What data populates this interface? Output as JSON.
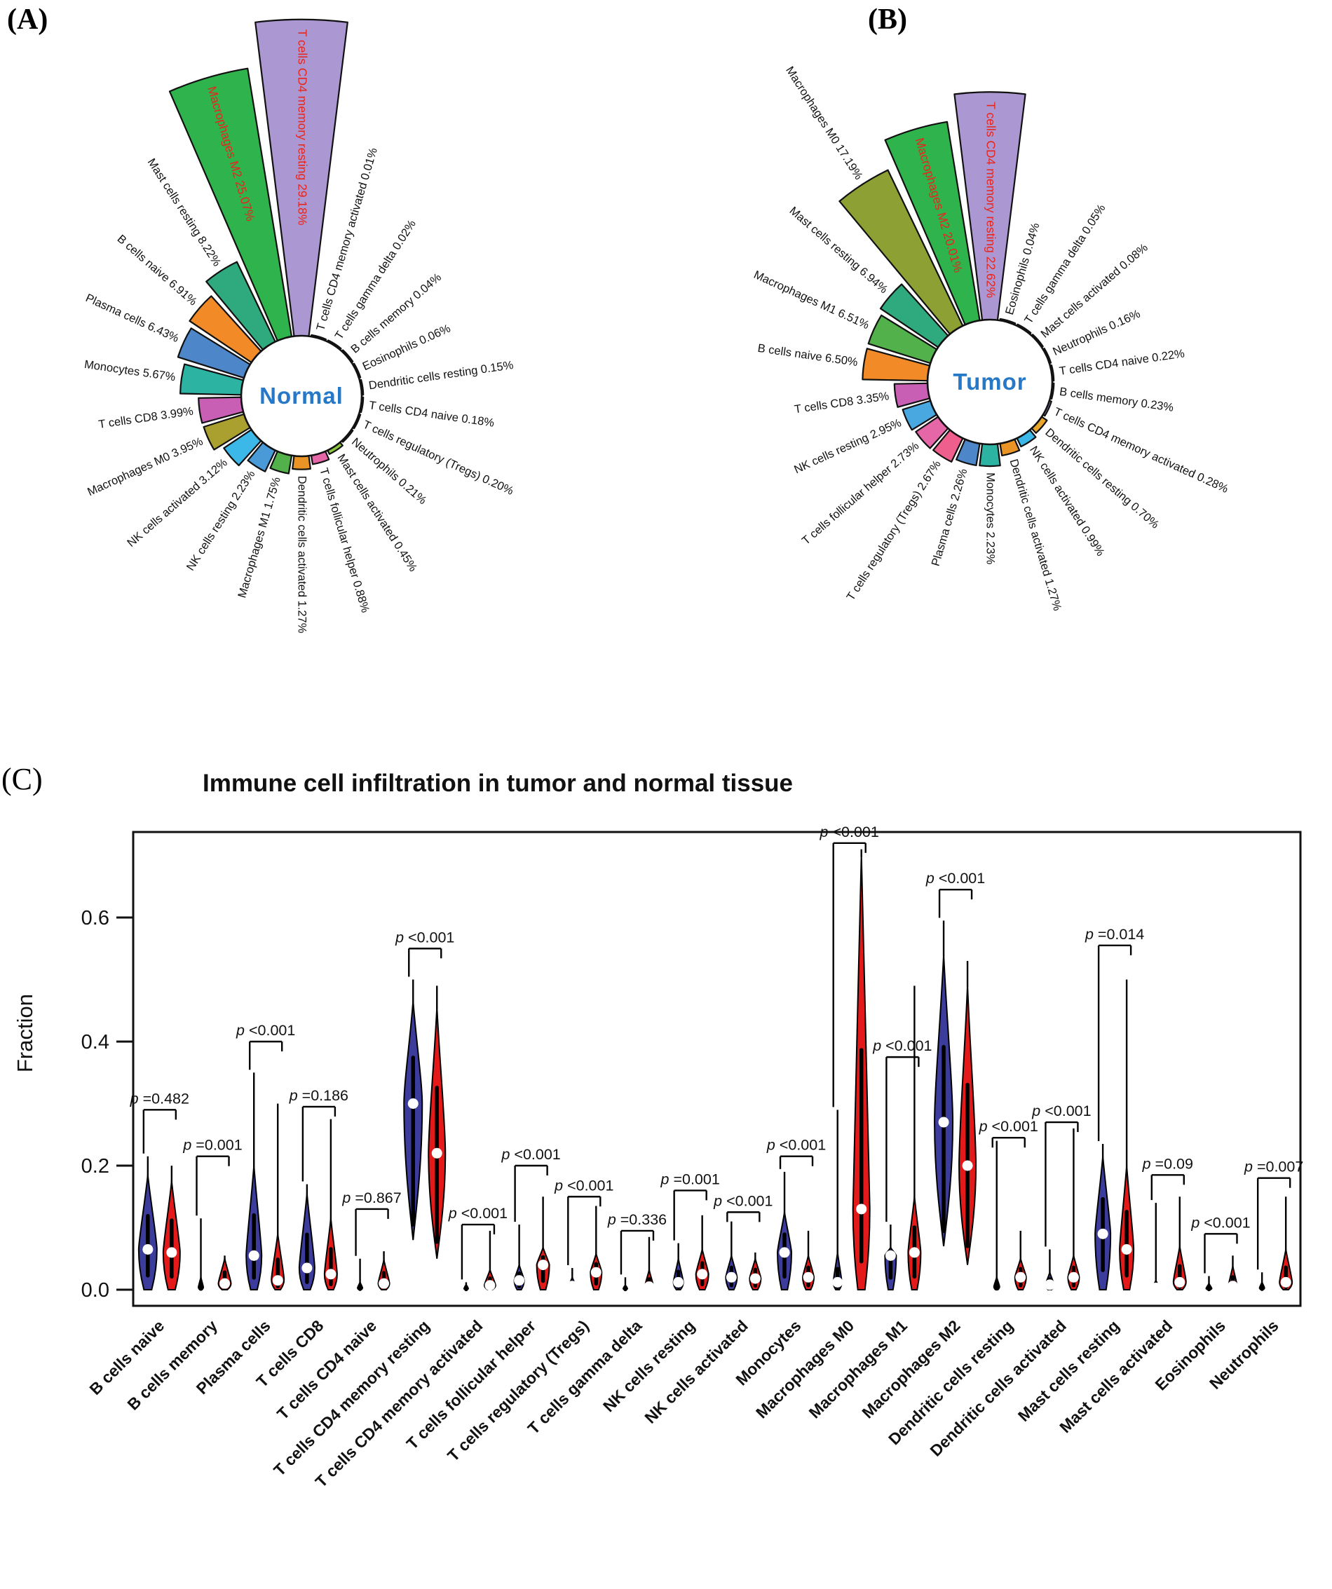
{
  "chart_data": [
    {
      "id": "A",
      "type": "rose",
      "panel_label": "(A)",
      "center_label": "Normal",
      "unit": "%",
      "highlight_color": "#e8251d",
      "series": [
        {
          "label": "T cells CD4 memory resting",
          "value": 29.18,
          "pct": "29.18%",
          "color": "#ab97d1",
          "highlight": true
        },
        {
          "label": "Macrophages M2",
          "value": 25.07,
          "pct": "25.07%",
          "color": "#2fb34c",
          "highlight": true
        },
        {
          "label": "Mast cells resting",
          "value": 8.22,
          "pct": "8.22%",
          "color": "#2fa97e"
        },
        {
          "label": "B cells naive",
          "value": 6.91,
          "pct": "6.91%",
          "color": "#f18a27"
        },
        {
          "label": "Plasma cells",
          "value": 6.43,
          "pct": "6.43%",
          "color": "#4e86ca"
        },
        {
          "label": "Monocytes",
          "value": 5.67,
          "pct": "5.67%",
          "color": "#2db3a2"
        },
        {
          "label": "T cells CD8",
          "value": 3.99,
          "pct": "3.99%",
          "color": "#c95fb5"
        },
        {
          "label": "Macrophages M0",
          "value": 3.95,
          "pct": "3.95%",
          "color": "#aaa02f"
        },
        {
          "label": "NK cells activated",
          "value": 3.12,
          "pct": "3.12%",
          "color": "#3cb8e8"
        },
        {
          "label": "NK cells resting",
          "value": 2.23,
          "pct": "2.23%",
          "color": "#4a9ad8"
        },
        {
          "label": "Macrophages M1",
          "value": 1.75,
          "pct": "1.75%",
          "color": "#52b14b"
        },
        {
          "label": "Dendritic cells activated",
          "value": 1.27,
          "pct": "1.27%",
          "color": "#eb9426"
        },
        {
          "label": "T cells follicular helper",
          "value": 0.88,
          "pct": "0.88%",
          "color": "#e667a8"
        },
        {
          "label": "Mast cells activated",
          "value": 0.45,
          "pct": "0.45%",
          "color": "#8cc63e"
        },
        {
          "label": "Neutrophils",
          "value": 0.21,
          "pct": "0.21%",
          "color": "#e4519e"
        },
        {
          "label": "T cells regulatory (Tregs)",
          "value": 0.2,
          "pct": "0.20%",
          "color": "#b8d96a"
        },
        {
          "label": "T cells CD4 naive",
          "value": 0.18,
          "pct": "0.18%",
          "color": "#e89bc3"
        },
        {
          "label": "Dendritic cells resting",
          "value": 0.15,
          "pct": "0.15%",
          "color": "#f2a73b"
        },
        {
          "label": "Eosinophils",
          "value": 0.06,
          "pct": "0.06%",
          "color": "#7f66b3"
        },
        {
          "label": "B cells memory",
          "value": 0.04,
          "pct": "0.04%",
          "color": "#c8a23f"
        },
        {
          "label": "T cells gamma delta",
          "value": 0.02,
          "pct": "0.02%",
          "color": "#69c5c9"
        },
        {
          "label": "T cells CD4 memory activated",
          "value": 0.01,
          "pct": "0.01%",
          "color": "#d46a6a"
        }
      ]
    },
    {
      "id": "B",
      "type": "rose",
      "panel_label": "(B)",
      "center_label": "Tumor",
      "unit": "%",
      "highlight_color": "#e8251d",
      "series": [
        {
          "label": "T cells CD4 memory resting",
          "value": 22.62,
          "pct": "22.62%",
          "color": "#ab97d1",
          "highlight": true
        },
        {
          "label": "Macrophages M2",
          "value": 20.01,
          "pct": "20.01%",
          "color": "#2fb34c",
          "highlight": true
        },
        {
          "label": "Macrophages M0",
          "value": 17.19,
          "pct": "17.19%",
          "color": "#8da033"
        },
        {
          "label": "Mast cells resting",
          "value": 6.94,
          "pct": "6.94%",
          "color": "#2fa97e"
        },
        {
          "label": "Macrophages M1",
          "value": 6.51,
          "pct": "6.51%",
          "color": "#52b14b"
        },
        {
          "label": "B cells naive",
          "value": 6.5,
          "pct": "6.50%",
          "color": "#f18a27"
        },
        {
          "label": "T cells CD8",
          "value": 3.35,
          "pct": "3.35%",
          "color": "#c95fb5"
        },
        {
          "label": "NK cells resting",
          "value": 2.95,
          "pct": "2.95%",
          "color": "#4aa8e0"
        },
        {
          "label": "T cells follicular helper",
          "value": 2.73,
          "pct": "2.73%",
          "color": "#e667a8"
        },
        {
          "label": "T cells regulatory (Tregs)",
          "value": 2.67,
          "pct": "2.67%",
          "color": "#ef5f8e"
        },
        {
          "label": "Plasma cells",
          "value": 2.26,
          "pct": "2.26%",
          "color": "#4e86ca"
        },
        {
          "label": "Monocytes",
          "value": 2.23,
          "pct": "2.23%",
          "color": "#2db3a2"
        },
        {
          "label": "Dendritic cells activated",
          "value": 1.27,
          "pct": "1.27%",
          "color": "#eb9426"
        },
        {
          "label": "NK cells activated",
          "value": 0.99,
          "pct": "0.99%",
          "color": "#3cb8e8"
        },
        {
          "label": "Dendritic cells resting",
          "value": 0.7,
          "pct": "0.70%",
          "color": "#e8a62b"
        },
        {
          "label": "T cells CD4 memory activated",
          "value": 0.28,
          "pct": "0.28%",
          "color": "#9a86c9"
        },
        {
          "label": "B cells memory",
          "value": 0.23,
          "pct": "0.23%",
          "color": "#c8a23f"
        },
        {
          "label": "T cells CD4 naive",
          "value": 0.22,
          "pct": "0.22%",
          "color": "#e89bc3"
        },
        {
          "label": "Neutrophils",
          "value": 0.16,
          "pct": "0.16%",
          "color": "#e4519e"
        },
        {
          "label": "Mast cells activated",
          "value": 0.08,
          "pct": "0.08%",
          "color": "#8cc63e"
        },
        {
          "label": "T cells gamma delta",
          "value": 0.05,
          "pct": "0.05%",
          "color": "#69c5c9"
        },
        {
          "label": "Eosinophils",
          "value": 0.04,
          "pct": "0.04%",
          "color": "#7f66b3"
        }
      ]
    },
    {
      "id": "C",
      "type": "violin",
      "panel_label": "(C)",
      "title": "Immune cell infiltration in tumor and normal tissue",
      "ylabel": "Fraction",
      "ylim": [
        0,
        0.74
      ],
      "yticks": [
        0,
        0.2,
        0.4,
        0.6
      ],
      "ytick_labels": [
        "0.0",
        "0.2",
        "0.4",
        "0.6"
      ],
      "series_names": [
        "Normal",
        "Tumor"
      ],
      "normal_color": "#3c3c9c",
      "tumor_color": "#e41a1a",
      "median_dot_color": "#ffffff",
      "groups": [
        {
          "category": "B cells naive",
          "p": "p=0.482",
          "p_y": 0.29,
          "normal": {
            "max": 0.215,
            "body": 0.185,
            "median": 0.065,
            "w": 13
          },
          "tumor": {
            "max": 0.2,
            "body": 0.175,
            "median": 0.06,
            "w": 12
          }
        },
        {
          "category": "B cells memory",
          "p": "p=0.001",
          "p_y": 0.215,
          "normal": {
            "max": 0.115,
            "body": 0.02,
            "median": 0.004,
            "w": 3.5
          },
          "tumor": {
            "max": 0.055,
            "body": 0.05,
            "median": 0.01,
            "w": 9
          }
        },
        {
          "category": "Plasma cells",
          "p": "p<0.001",
          "p_y": 0.4,
          "normal": {
            "max": 0.35,
            "body": 0.2,
            "median": 0.055,
            "w": 11
          },
          "tumor": {
            "max": 0.3,
            "body": 0.09,
            "median": 0.015,
            "w": 9
          }
        },
        {
          "category": "T cells CD8",
          "p": "p=0.186",
          "p_y": 0.295,
          "normal": {
            "max": 0.17,
            "body": 0.155,
            "median": 0.035,
            "w": 11
          },
          "tumor": {
            "max": 0.275,
            "body": 0.115,
            "median": 0.025,
            "w": 9
          }
        },
        {
          "category": "T cells CD4 naive",
          "p": "p=0.867",
          "p_y": 0.13,
          "normal": {
            "max": 0.05,
            "body": 0.012,
            "median": 0.003,
            "w": 3.5
          },
          "tumor": {
            "max": 0.062,
            "body": 0.048,
            "median": 0.01,
            "w": 8
          }
        },
        {
          "category": "T cells CD4 memory resting",
          "p": "p<0.001",
          "p_y": 0.55,
          "normal": {
            "max": 0.5,
            "body": 0.465,
            "median": 0.3,
            "w": 13,
            "lo": 0.08
          },
          "tumor": {
            "max": 0.49,
            "body": 0.455,
            "median": 0.22,
            "w": 12,
            "lo": 0.05
          }
        },
        {
          "category": "T cells CD4 memory activated",
          "p": "p<0.001",
          "p_y": 0.105,
          "normal": {
            "max": 0.012,
            "body": 0.008,
            "median": 0.002,
            "w": 3
          },
          "tumor": {
            "max": 0.095,
            "body": 0.032,
            "median": 0.007,
            "w": 8
          }
        },
        {
          "category": "T cells follicular helper",
          "p": "p<0.001",
          "p_y": 0.2,
          "normal": {
            "max": 0.105,
            "body": 0.04,
            "median": 0.015,
            "w": 7
          },
          "tumor": {
            "max": 0.15,
            "body": 0.068,
            "median": 0.04,
            "w": 9
          }
        },
        {
          "category": "T cells regulatory (Tregs)",
          "p": "p<0.001",
          "p_y": 0.15,
          "normal": {
            "max": 0.035,
            "body": 0.02,
            "median": 0.006,
            "w": 5
          },
          "tumor": {
            "max": 0.135,
            "body": 0.058,
            "median": 0.028,
            "w": 8
          }
        },
        {
          "category": "T cells gamma delta",
          "p": "p=0.336",
          "p_y": 0.095,
          "normal": {
            "max": 0.02,
            "body": 0.007,
            "median": 0.002,
            "w": 3
          },
          "tumor": {
            "max": 0.085,
            "body": 0.032,
            "median": 0.005,
            "w": 6
          }
        },
        {
          "category": "NK cells resting",
          "p": "p=0.001",
          "p_y": 0.16,
          "normal": {
            "max": 0.075,
            "body": 0.05,
            "median": 0.012,
            "w": 7
          },
          "tumor": {
            "max": 0.12,
            "body": 0.065,
            "median": 0.025,
            "w": 9
          }
        },
        {
          "category": "NK cells activated",
          "p": "p<0.001",
          "p_y": 0.125,
          "normal": {
            "max": 0.11,
            "body": 0.055,
            "median": 0.02,
            "w": 8
          },
          "tumor": {
            "max": 0.06,
            "body": 0.05,
            "median": 0.018,
            "w": 8
          }
        },
        {
          "category": "Monocytes",
          "p": "p<0.001",
          "p_y": 0.215,
          "normal": {
            "max": 0.19,
            "body": 0.125,
            "median": 0.06,
            "w": 10
          },
          "tumor": {
            "max": 0.095,
            "body": 0.055,
            "median": 0.02,
            "w": 8
          }
        },
        {
          "category": "Macrophages M0",
          "p": "p<0.001",
          "p_y": 0.72,
          "normal": {
            "max": 0.29,
            "body": 0.06,
            "median": 0.012,
            "w": 6
          },
          "tumor": {
            "max": 0.71,
            "body": 0.7,
            "median": 0.13,
            "w": 12
          }
        },
        {
          "category": "Macrophages M1",
          "p": "p<0.001",
          "p_y": 0.375,
          "normal": {
            "max": 0.105,
            "body": 0.068,
            "median": 0.055,
            "w": 8
          },
          "tumor": {
            "max": 0.49,
            "body": 0.15,
            "median": 0.06,
            "w": 9
          }
        },
        {
          "category": "Macrophages M2",
          "p": "p<0.001",
          "p_y": 0.645,
          "normal": {
            "max": 0.595,
            "body": 0.54,
            "median": 0.27,
            "w": 13,
            "lo": 0.07
          },
          "tumor": {
            "max": 0.53,
            "body": 0.49,
            "median": 0.2,
            "w": 12,
            "lo": 0.04
          }
        },
        {
          "category": "Dendritic cells resting",
          "p": "p<0.001",
          "p_y": 0.245,
          "normal": {
            "max": 0.24,
            "body": 0.02,
            "median": 0.005,
            "w": 4
          },
          "tumor": {
            "max": 0.095,
            "body": 0.05,
            "median": 0.02,
            "w": 8
          }
        },
        {
          "category": "Dendritic cells activated",
          "p": "p<0.001",
          "p_y": 0.27,
          "normal": {
            "max": 0.065,
            "body": 0.028,
            "median": 0.008,
            "w": 6
          },
          "tumor": {
            "max": 0.26,
            "body": 0.055,
            "median": 0.02,
            "w": 8
          }
        },
        {
          "category": "Mast cells resting",
          "p": "p=0.014",
          "p_y": 0.555,
          "normal": {
            "max": 0.235,
            "body": 0.215,
            "median": 0.09,
            "w": 11
          },
          "tumor": {
            "max": 0.5,
            "body": 0.2,
            "median": 0.065,
            "w": 10
          }
        },
        {
          "category": "Mast cells activated",
          "p": "p=0.09",
          "p_y": 0.185,
          "normal": {
            "max": 0.14,
            "body": 0.015,
            "median": 0.003,
            "w": 5
          },
          "tumor": {
            "max": 0.15,
            "body": 0.07,
            "median": 0.012,
            "w": 9
          }
        },
        {
          "category": "Eosinophils",
          "p": "p<0.001",
          "p_y": 0.09,
          "normal": {
            "max": 0.022,
            "body": 0.01,
            "median": 0.002,
            "w": 4
          },
          "tumor": {
            "max": 0.055,
            "body": 0.038,
            "median": 0.006,
            "w": 6
          }
        },
        {
          "category": "Neutrophils",
          "p": "p=0.007",
          "p_y": 0.18,
          "normal": {
            "max": 0.028,
            "body": 0.012,
            "median": 0.003,
            "w": 3.5
          },
          "tumor": {
            "max": 0.15,
            "body": 0.065,
            "median": 0.012,
            "w": 9
          }
        }
      ]
    }
  ],
  "accent": {
    "center_label_color": "#2779c7",
    "axis_color": "#111111"
  }
}
